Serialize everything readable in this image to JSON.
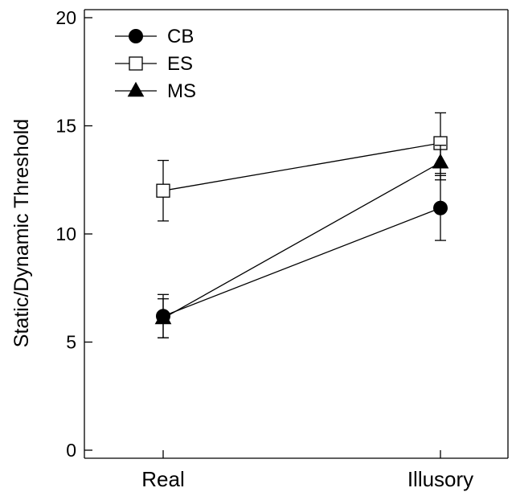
{
  "chart_data": {
    "type": "line",
    "ylabel": "Static/Dynamic Threshold",
    "xlabel": "",
    "categories": [
      "Real",
      "Illusory"
    ],
    "ylim": [
      0,
      20
    ],
    "yticks": [
      0,
      5,
      10,
      15,
      20
    ],
    "grid": false,
    "legend_position": "top-left",
    "series": [
      {
        "name": "CB",
        "marker": "filled-circle",
        "values": [
          6.2,
          11.2
        ],
        "errors": [
          1.0,
          1.5
        ]
      },
      {
        "name": "ES",
        "marker": "open-square",
        "values": [
          12.0,
          14.2
        ],
        "errors": [
          1.4,
          1.4
        ]
      },
      {
        "name": "MS",
        "marker": "filled-triangle",
        "values": [
          6.1,
          13.3
        ],
        "errors": [
          0.9,
          0.8
        ]
      }
    ]
  }
}
